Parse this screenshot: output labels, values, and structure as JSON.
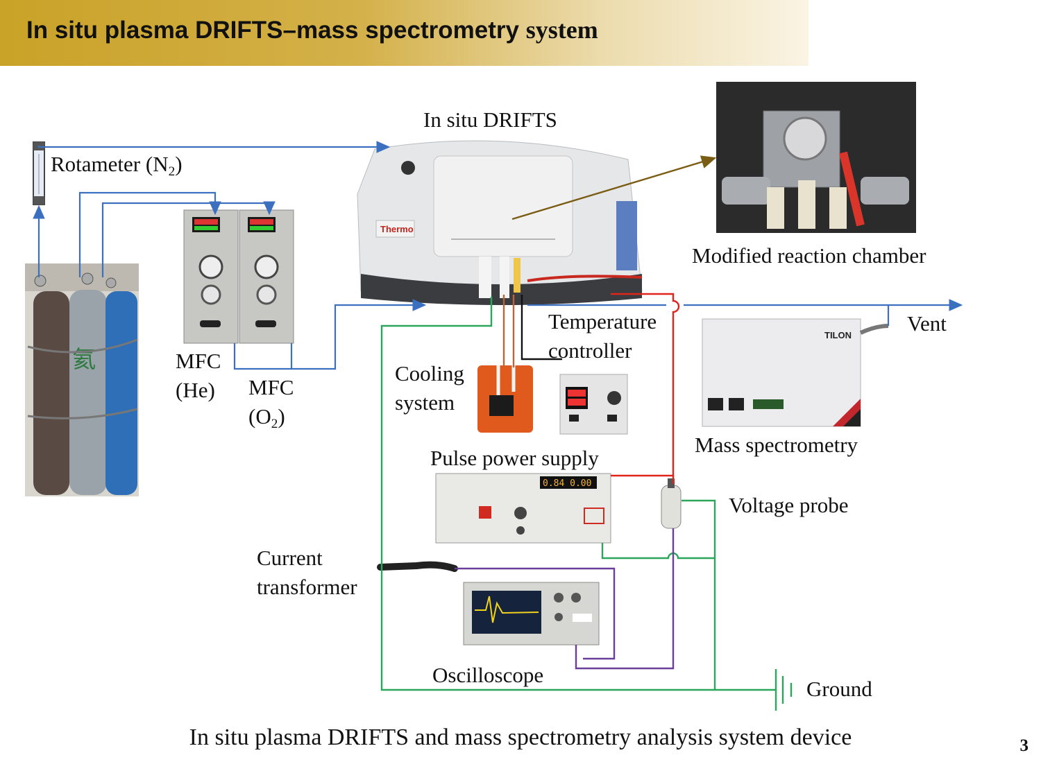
{
  "title": {
    "main": "In situ plasma DRIFTS–mass spectrometry",
    "tail": "system"
  },
  "labels": {
    "drifts": "In situ DRIFTS",
    "rotameter": "Rotameter (N",
    "rotameter_sub": "2",
    "rotameter_close": ")",
    "chamber": "Modified reaction chamber",
    "mfc_he_1": "MFC",
    "mfc_he_2": "(He)",
    "mfc_o2_1": "MFC",
    "mfc_o2_2": "(O",
    "mfc_o2_sub": "2",
    "mfc_o2_close": ")",
    "temp_1": "Temperature",
    "temp_2": "controller",
    "cooling_1": "Cooling",
    "cooling_2": "system",
    "vent": "Vent",
    "mass_spec": "Mass spectrometry",
    "pulse": "Pulse power supply",
    "voltage_probe": "Voltage probe",
    "current_1": "Current",
    "current_2": "transformer",
    "oscilloscope": "Oscilloscope",
    "ground": "Ground"
  },
  "device_text": {
    "thermo_logo": "Thermo",
    "tilon_logo": "TILON",
    "pulse_display": "0.84  0.00"
  },
  "caption": "In situ plasma DRIFTS and mass spectrometry analysis system device",
  "page_number": "3",
  "colors": {
    "gas_line": "#3b6fc0",
    "red_line": "#e0231b",
    "green_line": "#2aa65a",
    "purple_line": "#6a3d9a",
    "pointer": "#7a5c12",
    "title_gold": "#c9a227"
  }
}
